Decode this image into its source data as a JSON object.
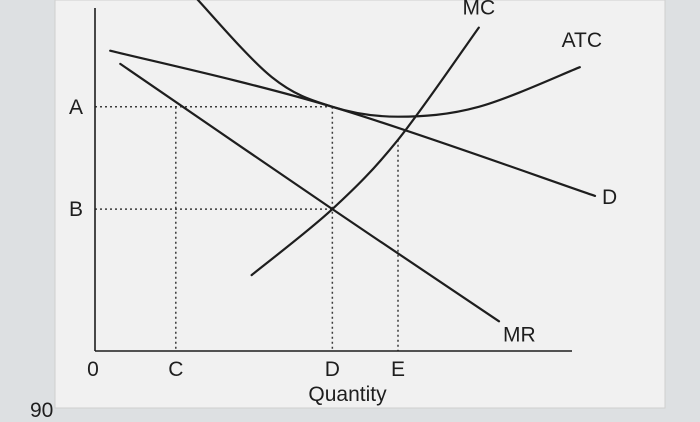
{
  "chart_data": {
    "type": "line",
    "xlabel": "Quantity",
    "ylabel": "",
    "title": "",
    "xlim": [
      0,
      100
    ],
    "ylim": [
      0,
      100
    ],
    "origin_label": "0",
    "x_ticks": [
      {
        "label": "C",
        "value": 16
      },
      {
        "label": "D",
        "value": 47
      },
      {
        "label": "E",
        "value": 60
      }
    ],
    "y_ticks": [
      {
        "label": "A",
        "value": 74
      },
      {
        "label": "B",
        "value": 43
      }
    ],
    "series": [
      {
        "name": "D",
        "points": [
          [
            3,
            91
          ],
          [
            47,
            74
          ],
          [
            99,
            47
          ]
        ]
      },
      {
        "name": "MR",
        "points": [
          [
            5,
            87
          ],
          [
            47,
            43
          ],
          [
            80,
            9
          ]
        ]
      },
      {
        "name": "MC",
        "points": [
          [
            31,
            23
          ],
          [
            47,
            43
          ],
          [
            60,
            64
          ],
          [
            76,
            98
          ]
        ]
      },
      {
        "name": "ATC",
        "points": [
          [
            20,
            107
          ],
          [
            35,
            83
          ],
          [
            47,
            74
          ],
          [
            60,
            71
          ],
          [
            76,
            74
          ],
          [
            96,
            86
          ]
        ]
      }
    ],
    "guides": [
      {
        "label": "A",
        "from": [
          0,
          74
        ],
        "to": [
          47,
          74
        ]
      },
      {
        "label": "B",
        "from": [
          0,
          43
        ],
        "to": [
          47,
          43
        ]
      },
      {
        "label": "C",
        "from": [
          16,
          74
        ],
        "to": [
          16,
          0
        ]
      },
      {
        "label": "D",
        "from": [
          47,
          74
        ],
        "to": [
          47,
          0
        ]
      },
      {
        "label": "E",
        "from": [
          60,
          64
        ],
        "to": [
          60,
          0
        ]
      }
    ],
    "corner_mark": "90",
    "grid": false
  }
}
